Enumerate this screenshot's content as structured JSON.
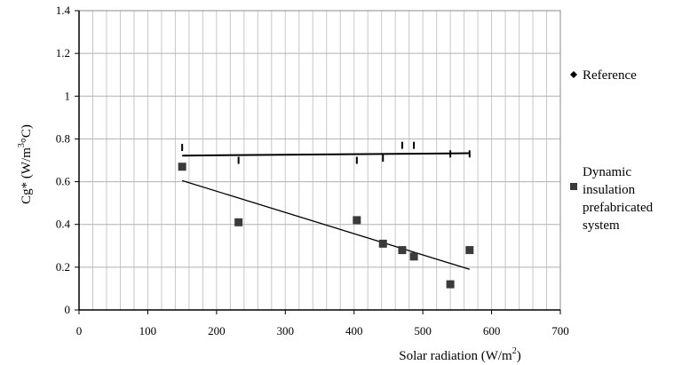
{
  "chart_data": {
    "type": "scatter",
    "xlabel": "Solar radiation (W/m²)",
    "ylabel": "Cg* (W/m³°C)",
    "xlim": [
      0,
      700
    ],
    "ylim": [
      0,
      1.4
    ],
    "xticks": [
      0,
      100,
      200,
      300,
      400,
      500,
      600,
      700
    ],
    "yticks": [
      0,
      0.2,
      0.4,
      0.6,
      0.8,
      1,
      1.2,
      1.4
    ],
    "ytick_labels": [
      "0",
      "0.2",
      "0.4",
      "0.6",
      "0.8",
      "1",
      "1.2",
      "1.4"
    ],
    "grid": true,
    "legend_position": "right",
    "series": [
      {
        "name": "Reference",
        "marker": "dash",
        "color": "#000000",
        "x": [
          150,
          232,
          404,
          442,
          470,
          487,
          540,
          568
        ],
        "y": [
          0.76,
          0.7,
          0.7,
          0.71,
          0.77,
          0.77,
          0.73,
          0.73
        ],
        "trendline": {
          "x": [
            150,
            568
          ],
          "y": [
            0.722,
            0.733
          ]
        }
      },
      {
        "name": "Dynamic insulation prefabricated system",
        "legend_lines": [
          "Dynamic",
          "insulation",
          "prefabricated",
          "system"
        ],
        "marker": "square",
        "color": "#3a3a3a",
        "x": [
          150,
          232,
          404,
          442,
          470,
          487,
          540,
          568
        ],
        "y": [
          0.67,
          0.41,
          0.42,
          0.31,
          0.28,
          0.25,
          0.12,
          0.28
        ],
        "trendline": {
          "x": [
            150,
            568
          ],
          "y": [
            0.605,
            0.19
          ]
        }
      }
    ]
  }
}
